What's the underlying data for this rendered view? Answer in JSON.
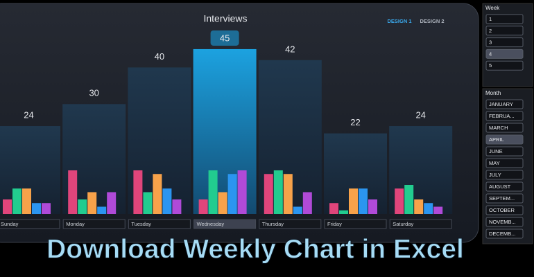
{
  "chart_data": {
    "type": "bar",
    "title": "Interviews",
    "categories": [
      "Sunday",
      "Monday",
      "Tuesday",
      "Wednesday",
      "Thursday",
      "Friday",
      "Saturday"
    ],
    "values": [
      24,
      30,
      40,
      45,
      42,
      22,
      24
    ],
    "color": "#1f3a52",
    "highlight_color": "#1a9ad6",
    "highlight_index": 3,
    "series": [
      {
        "color": "#e0457b",
        "values": [
          4,
          12,
          12,
          4,
          11,
          3,
          7
        ]
      },
      {
        "color": "#22cc8f",
        "values": [
          7,
          4,
          6,
          12,
          12,
          1,
          8
        ]
      },
      {
        "color": "#f7a24a",
        "values": [
          7,
          6,
          11,
          6,
          11,
          7,
          4
        ]
      },
      {
        "color": "#2b95f0",
        "values": [
          3,
          2,
          7,
          11,
          2,
          7,
          3
        ]
      },
      {
        "color": "#b04ad8",
        "values": [
          3,
          6,
          4,
          12,
          6,
          4,
          2
        ]
      }
    ]
  },
  "tabs": [
    "DESIGN 1",
    "DESIGN 2"
  ],
  "slicers": [
    {
      "title": "Week",
      "items": [
        "1",
        "2",
        "3",
        "4",
        "5"
      ],
      "selected": 3
    },
    {
      "title": "Month",
      "items": [
        "JANUARY",
        "FEBRUA...",
        "MARCH",
        "APRIL",
        "JUNE",
        "MAY",
        "JULY",
        "AUGUST",
        "SEPTEM...",
        "OCTOBER",
        "NOVEMB...",
        "DECEMB..."
      ],
      "selected": 3
    }
  ],
  "banner": "Download Weekly Chart in Excel"
}
